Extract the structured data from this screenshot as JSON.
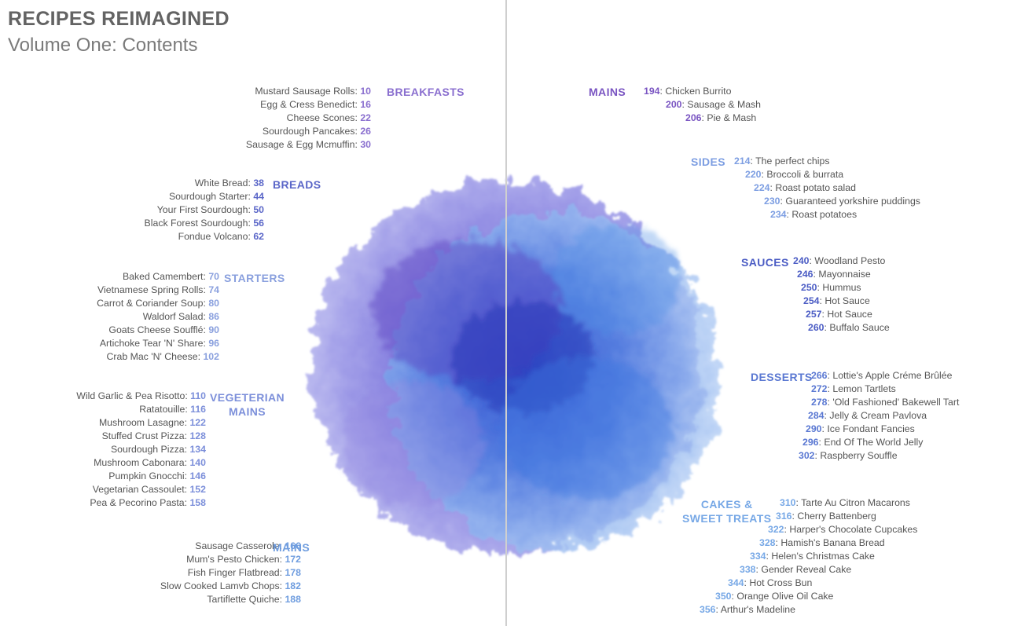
{
  "title": "RECIPES REIMAGINED",
  "subtitle": "Volume One: Contents",
  "left_sections": [
    {
      "heading": "BREAKFASTS",
      "color": "#8a6fcf",
      "items": [
        {
          "name": "Mustard Sausage Rolls",
          "page": "10"
        },
        {
          "name": "Egg & Cress Benedict",
          "page": "16"
        },
        {
          "name": "Cheese Scones",
          "page": "22"
        },
        {
          "name": "Sourdough Pancakes",
          "page": "26"
        },
        {
          "name": "Sausage & Egg Mcmuffin",
          "page": "30"
        }
      ]
    },
    {
      "heading": "BREADS",
      "color": "#5a66c8",
      "items": [
        {
          "name": "White Bread",
          "page": "38"
        },
        {
          "name": "Sourdough Starter",
          "page": "44"
        },
        {
          "name": "Your First Sourdough",
          "page": "50"
        },
        {
          "name": "Black Forest Sourdough",
          "page": "56"
        },
        {
          "name": "Fondue Volcano",
          "page": "62"
        }
      ]
    },
    {
      "heading": "STARTERS",
      "color": "#8aa0de",
      "items": [
        {
          "name": "Baked Camembert",
          "page": "70"
        },
        {
          "name": "Vietnamese Spring Rolls",
          "page": "74"
        },
        {
          "name": "Carrot & Coriander Soup",
          "page": "80"
        },
        {
          "name": "Waldorf Salad",
          "page": "86"
        },
        {
          "name": "Goats Cheese Soufflé",
          "page": "90"
        },
        {
          "name": "Artichoke Tear 'N' Share",
          "page": "96"
        },
        {
          "name": "Crab Mac 'N' Cheese",
          "page": "102"
        }
      ]
    },
    {
      "heading_line1": "VEGETERIAN",
      "heading_line2": "MAINS",
      "color": "#7c8fda",
      "items": [
        {
          "name": "Wild Garlic & Pea Risotto",
          "page": "110"
        },
        {
          "name": "Ratatouille",
          "page": "116"
        },
        {
          "name": "Mushroom Lasagne",
          "page": "122"
        },
        {
          "name": "Stuffed Crust Pizza",
          "page": "128"
        },
        {
          "name": "Sourdough Pizza",
          "page": "134"
        },
        {
          "name": "Mushroom Cabonara",
          "page": "140"
        },
        {
          "name": "Pumpkin Gnocchi",
          "page": "146"
        },
        {
          "name": "Vegetarian Cassoulet",
          "page": "152"
        },
        {
          "name": "Pea & Pecorino Pasta",
          "page": "158"
        }
      ]
    },
    {
      "heading": "MAINS",
      "color": "#6f9ddf",
      "items": [
        {
          "name": "Sausage Casserole",
          "page": "166"
        },
        {
          "name": "Mum's Pesto Chicken",
          "page": "172"
        },
        {
          "name": "Fish Finger Flatbread",
          "page": "178"
        },
        {
          "name": "Slow Cooked Lamvb Chops",
          "page": "182"
        },
        {
          "name": "Tartiflette Quiche",
          "page": "188"
        }
      ]
    }
  ],
  "right_sections": [
    {
      "heading": "MAINS",
      "color": "#7a55c2",
      "items": [
        {
          "page": "194",
          "name": "Chicken Burrito"
        },
        {
          "page": "200",
          "name": "Sausage & Mash"
        },
        {
          "page": "206",
          "name": "Pie & Mash"
        }
      ]
    },
    {
      "heading": "SIDES",
      "color": "#7d9ee2",
      "items": [
        {
          "page": "214",
          "name": "The perfect chips"
        },
        {
          "page": "220",
          "name": "Broccoli & burrata"
        },
        {
          "page": "224",
          "name": "Roast potato salad"
        },
        {
          "page": "230",
          "name": "Guaranteed yorkshire puddings"
        },
        {
          "page": "234",
          "name": "Roast potatoes"
        }
      ]
    },
    {
      "heading": "SAUCES",
      "color": "#4b5cc4",
      "items": [
        {
          "page": "240",
          "name": "Woodland Pesto"
        },
        {
          "page": "246",
          "name": "Mayonnaise"
        },
        {
          "page": "250",
          "name": "Hummus"
        },
        {
          "page": "254",
          "name": "Hot Sauce"
        },
        {
          "page": "257",
          "name": "Hot Sauce"
        },
        {
          "page": "260",
          "name": "Buffalo Sauce"
        }
      ]
    },
    {
      "heading": "DESSERTS",
      "color": "#5a78d2",
      "items": [
        {
          "page": "266",
          "name": "Lottie's Apple Créme Brûlée"
        },
        {
          "page": "272",
          "name": "Lemon Tartlets"
        },
        {
          "page": "278",
          "name": "'Old Fashioned' Bakewell Tart"
        },
        {
          "page": "284",
          "name": "Jelly & Cream Pavlova"
        },
        {
          "page": "290",
          "name": "Ice Fondant Fancies"
        },
        {
          "page": "296",
          "name": "End Of The World Jelly"
        },
        {
          "page": "302",
          "name": "Raspberry Souffle"
        }
      ]
    },
    {
      "heading_line1": "CAKES &",
      "heading_line2": "SWEET TREATS",
      "color": "#77a8e6",
      "items": [
        {
          "page": "310",
          "name": "Tarte Au Citron Macarons"
        },
        {
          "page": "316",
          "name": "Cherry Battenberg"
        },
        {
          "page": "322",
          "name": "Harper's Chocolate Cupcakes"
        },
        {
          "page": "328",
          "name": "Hamish's Banana Bread"
        },
        {
          "page": "334",
          "name": "Helen's Christmas Cake"
        },
        {
          "page": "338",
          "name": "Gender Reveal Cake"
        },
        {
          "page": "344",
          "name": "Hot Cross Bun"
        },
        {
          "page": "350",
          "name": "Orange Olive Oil Cake"
        },
        {
          "page": "356",
          "name": "Arthur's Madeline"
        }
      ]
    }
  ]
}
